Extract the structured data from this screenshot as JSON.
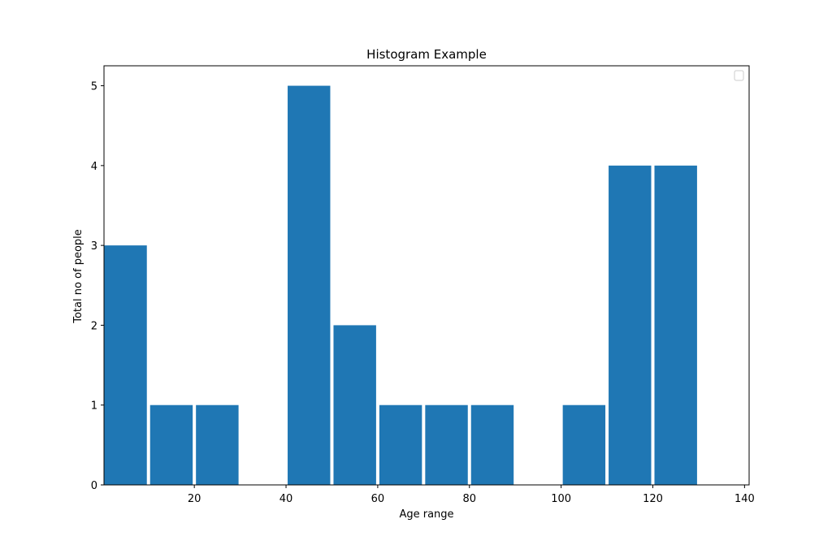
{
  "chart_data": {
    "type": "bar",
    "title": "Histogram Example",
    "xlabel": "Age range",
    "ylabel": "Total no of people",
    "xlim": [
      0.3,
      141
    ],
    "ylim": [
      0,
      5.25
    ],
    "xticks": [
      20,
      40,
      60,
      80,
      100,
      120,
      140
    ],
    "yticks": [
      0,
      1,
      2,
      3,
      4,
      5
    ],
    "bins": [
      {
        "start": 0,
        "end": 10,
        "value": 3
      },
      {
        "start": 10,
        "end": 20,
        "value": 1
      },
      {
        "start": 20,
        "end": 30,
        "value": 1
      },
      {
        "start": 30,
        "end": 40,
        "value": 0
      },
      {
        "start": 40,
        "end": 50,
        "value": 5
      },
      {
        "start": 50,
        "end": 60,
        "value": 2
      },
      {
        "start": 60,
        "end": 70,
        "value": 1
      },
      {
        "start": 70,
        "end": 80,
        "value": 1
      },
      {
        "start": 80,
        "end": 90,
        "value": 1
      },
      {
        "start": 90,
        "end": 100,
        "value": 0
      },
      {
        "start": 100,
        "end": 110,
        "value": 1
      },
      {
        "start": 110,
        "end": 120,
        "value": 4
      },
      {
        "start": 120,
        "end": 130,
        "value": 4
      }
    ],
    "bar_color": "#1f77b4",
    "grid": false,
    "legend": {
      "position": "top-right",
      "entries": []
    }
  }
}
